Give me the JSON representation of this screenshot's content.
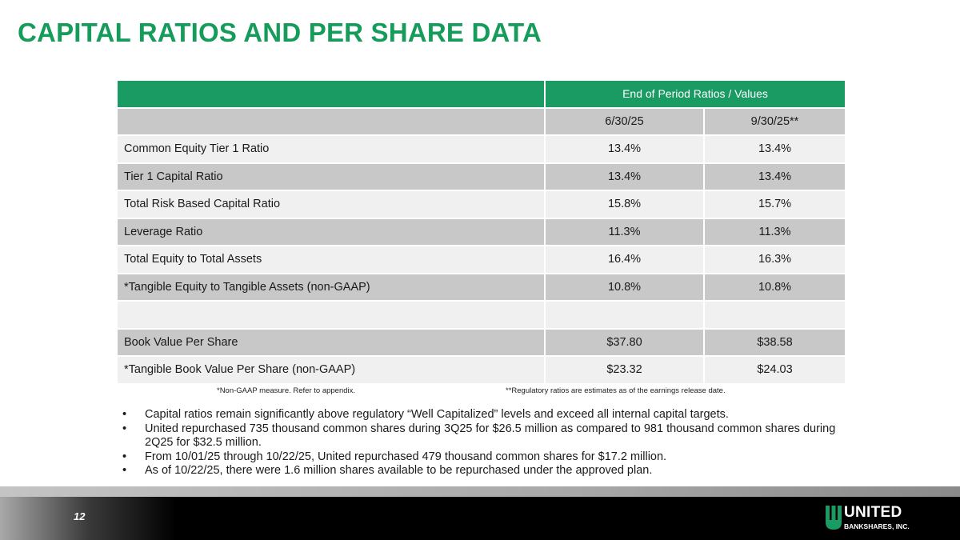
{
  "title": "CAPITAL RATIOS AND PER SHARE DATA",
  "table": {
    "group_header": "End of Period Ratios / Values",
    "columns": [
      "6/30/25",
      "9/30/25**"
    ],
    "rows": [
      {
        "label": "Common Equity Tier 1 Ratio",
        "v1": "13.4%",
        "v2": "13.4%"
      },
      {
        "label": "Tier 1 Capital Ratio",
        "v1": "13.4%",
        "v2": "13.4%"
      },
      {
        "label": "Total Risk Based Capital Ratio",
        "v1": "15.8%",
        "v2": "15.7%"
      },
      {
        "label": "Leverage Ratio",
        "v1": "11.3%",
        "v2": "11.3%"
      },
      {
        "label": "Total Equity to Total Assets",
        "v1": "16.4%",
        "v2": "16.3%"
      },
      {
        "label": "*Tangible Equity to Tangible Assets (non-GAAP)",
        "v1": "10.8%",
        "v2": "10.8%"
      },
      {
        "label": "",
        "v1": "",
        "v2": ""
      },
      {
        "label": "Book Value Per Share",
        "v1": "$37.80",
        "v2": "$38.58"
      },
      {
        "label": "*Tangible Book Value Per Share (non-GAAP)",
        "v1": "$23.32",
        "v2": "$24.03"
      }
    ]
  },
  "footnotes": {
    "left": "*Non-GAAP measure.  Refer to appendix.",
    "right": "**Regulatory ratios are estimates as of the earnings release date."
  },
  "bullet_char": "•",
  "bullets": [
    "Capital ratios remain significantly above regulatory “Well Capitalized” levels and exceed all internal capital targets.",
    "United repurchased 735 thousand common shares during 3Q25 for $26.5 million as compared to 981 thousand common shares during 2Q25 for $32.5 million.",
    "From 10/01/25 through 10/22/25, United repurchased 479 thousand common shares for $17.2 million.",
    "As of 10/22/25, there were 1.6 million shares available to be repurchased under the approved plan."
  ],
  "footer": {
    "page_number": "12",
    "logo_name": "UNITED",
    "logo_sub": "BANKSHARES, INC."
  },
  "colors": {
    "accent_green": "#159c5b",
    "header_green": "#1a9b63",
    "row_gray": "#c8c8c8",
    "row_light": "#f0f0f0"
  }
}
